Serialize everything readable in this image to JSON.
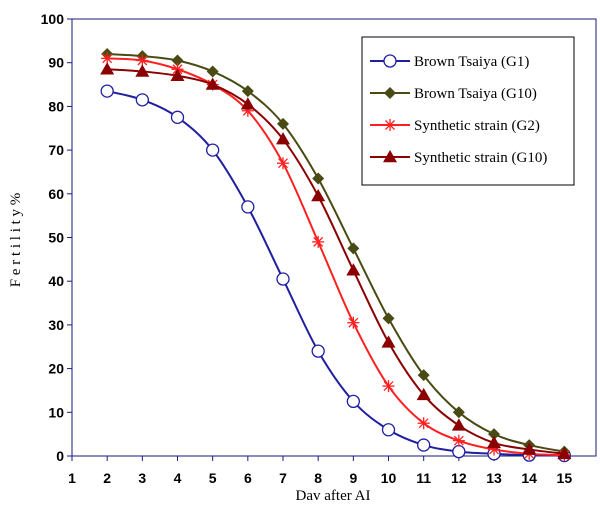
{
  "chart_data": {
    "type": "line",
    "title": "",
    "xlabel": "Dav after AI",
    "ylabel": "F e r t i l i t y %",
    "x": [
      2,
      3,
      4,
      5,
      6,
      7,
      8,
      9,
      10,
      11,
      12,
      13,
      14,
      15
    ],
    "xlim": [
      1,
      15.9
    ],
    "ylim": [
      0,
      100
    ],
    "xticks": [
      "1",
      "2",
      "3",
      "4",
      "5",
      "6",
      "7",
      "8",
      "9",
      "10",
      "11",
      "12",
      "13",
      "14",
      "15"
    ],
    "yticks": [
      "0",
      "10",
      "20",
      "30",
      "40",
      "50",
      "60",
      "70",
      "80",
      "90",
      "100"
    ],
    "grid": false,
    "legend_position": "top-right",
    "series": [
      {
        "name": "Brown Tsaiya (G1)",
        "color": "#1f1f9f",
        "marker": "circle-open",
        "values": [
          83.5,
          81.5,
          77.5,
          70,
          57,
          40.5,
          24,
          12.5,
          6,
          2.5,
          1,
          0.5,
          0.2,
          0.1
        ]
      },
      {
        "name": "Brown Tsaiya (G10)",
        "color": "#4a4a14",
        "marker": "diamond",
        "values": [
          92,
          91.5,
          90.5,
          88,
          83.5,
          76,
          63.5,
          47.5,
          31.5,
          18.5,
          10,
          5,
          2.5,
          1
        ]
      },
      {
        "name": "Synthetic strain (G2)",
        "color": "#ff2020",
        "marker": "asterisk",
        "values": [
          91,
          90.5,
          88.5,
          85,
          79,
          67,
          49,
          30.5,
          16,
          7.5,
          3.5,
          1.5,
          0.5,
          0.2
        ]
      },
      {
        "name": "Synthetic strain (G10)",
        "color": "#8b0000",
        "marker": "triangle",
        "values": [
          88.5,
          88,
          87,
          85,
          80.5,
          72.5,
          59.5,
          42.5,
          26,
          14,
          7,
          3,
          1.5,
          0.5
        ]
      }
    ]
  }
}
